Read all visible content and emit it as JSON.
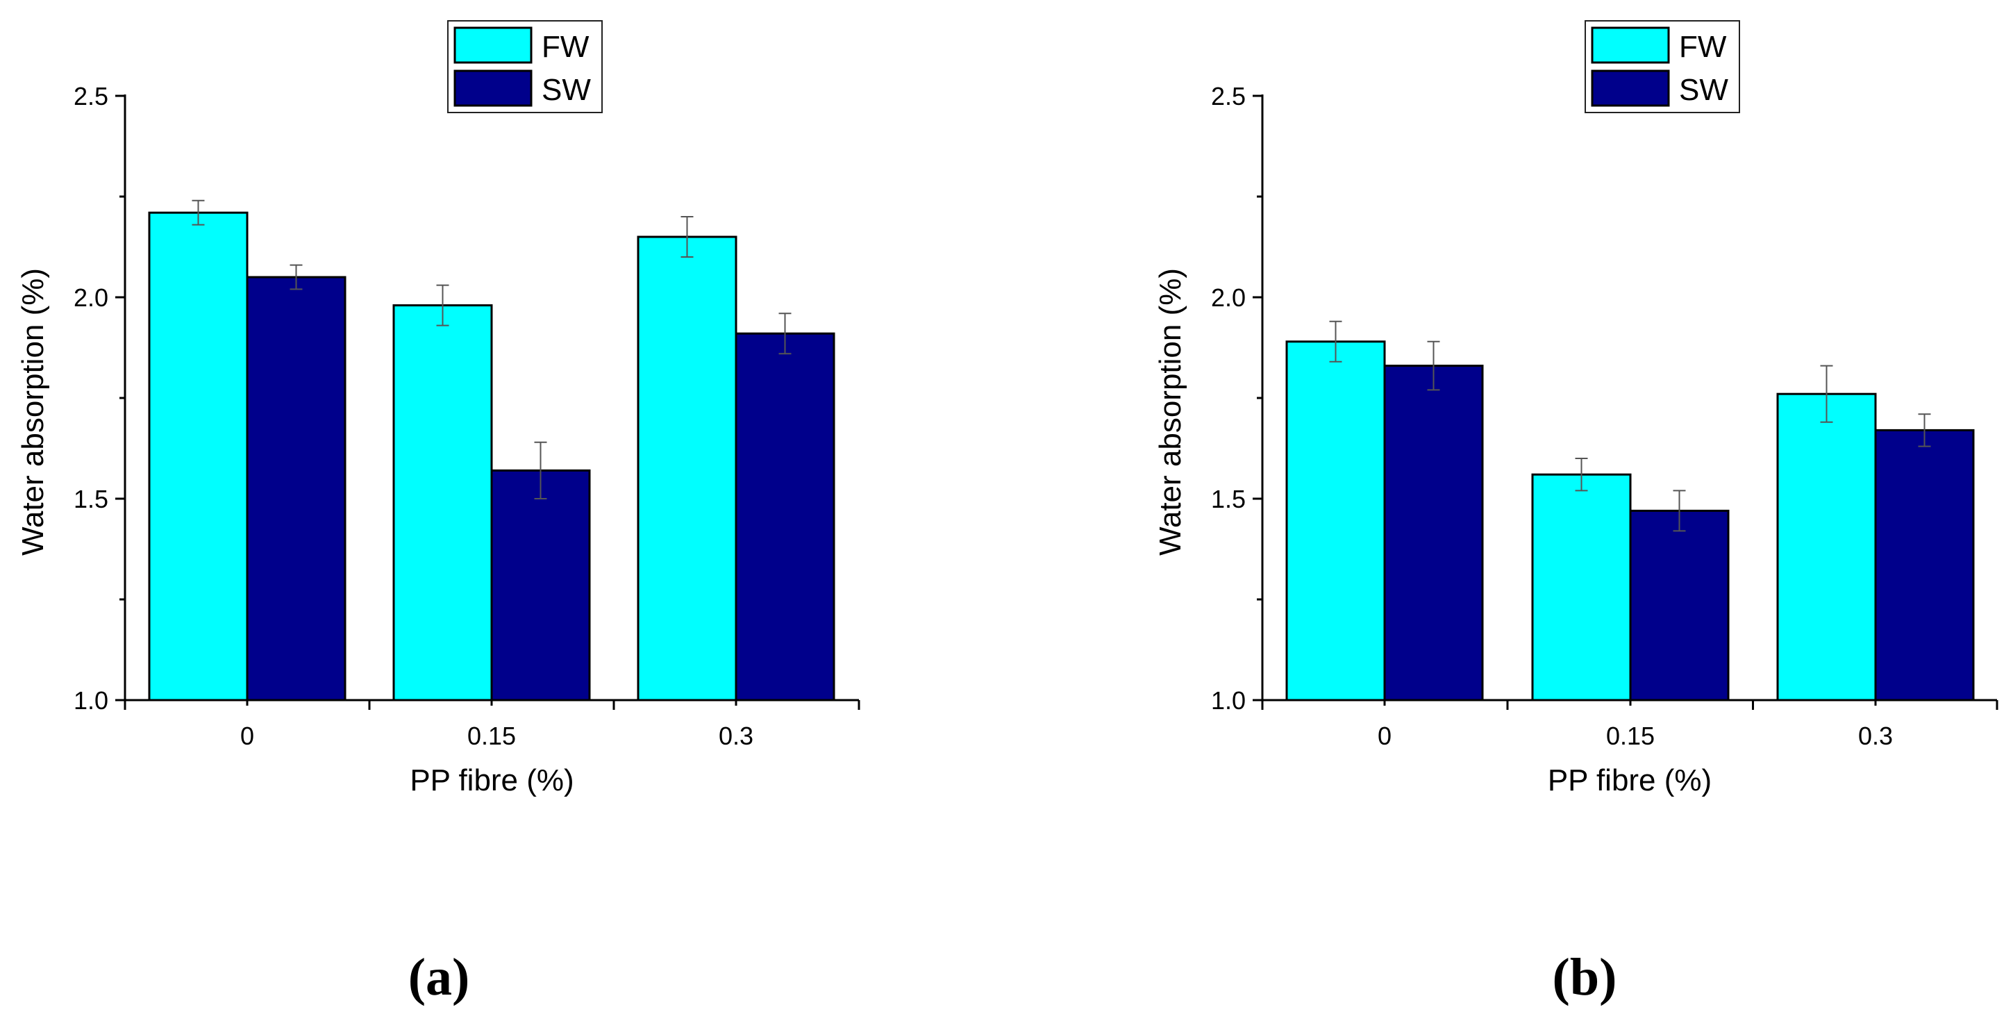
{
  "colors": {
    "fw": "#00FFFF",
    "sw": "#00008B",
    "axis": "#000000",
    "error_bar": "#555555"
  },
  "chart_data": [
    {
      "type": "bar",
      "panel_label": "(a)",
      "categories": [
        "0",
        "0.15",
        "0.3"
      ],
      "series": [
        {
          "name": "FW",
          "values": [
            2.21,
            1.98,
            2.15
          ],
          "errors": [
            0.03,
            0.05,
            0.05
          ]
        },
        {
          "name": "SW",
          "values": [
            2.05,
            1.57,
            1.91
          ],
          "errors": [
            0.03,
            0.07,
            0.05
          ]
        }
      ],
      "xlabel": "PP fibre (%)",
      "ylabel": "Water absorption (%)",
      "ylim": [
        1.0,
        2.5
      ],
      "yticks": [
        "1.0",
        "1.5",
        "2.0",
        "2.5"
      ],
      "legend_position": "top-center"
    },
    {
      "type": "bar",
      "panel_label": "(b)",
      "categories": [
        "0",
        "0.15",
        "0.3"
      ],
      "series": [
        {
          "name": "FW",
          "values": [
            1.89,
            1.56,
            1.76
          ],
          "errors": [
            0.05,
            0.04,
            0.07
          ]
        },
        {
          "name": "SW",
          "values": [
            1.83,
            1.47,
            1.67
          ],
          "errors": [
            0.06,
            0.05,
            0.04
          ]
        }
      ],
      "xlabel": "PP fibre (%)",
      "ylabel": "Water absorption (%)",
      "ylim": [
        1.0,
        2.5
      ],
      "yticks": [
        "1.0",
        "1.5",
        "2.0",
        "2.5"
      ],
      "legend_position": "top-center"
    }
  ]
}
